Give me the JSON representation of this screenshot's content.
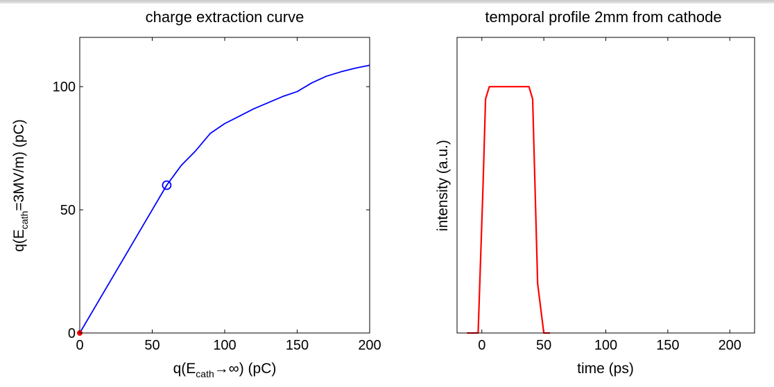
{
  "chart_data": [
    {
      "type": "line",
      "title": "charge extraction curve",
      "xlabel": {
        "pre": "q(E",
        "sub": "cath",
        "post": "→∞) (pC)"
      },
      "ylabel": {
        "pre": "q(E",
        "sub": "cath",
        "post": "=3MV/m) (pC)"
      },
      "xlim": [
        0,
        200
      ],
      "ylim": [
        0,
        120
      ],
      "xticks": [
        "0",
        "50",
        "100",
        "150",
        "200"
      ],
      "yticks": [
        "0",
        "50",
        "100"
      ],
      "series": [
        {
          "color": "#0000ff",
          "x": [
            0,
            10,
            20,
            30,
            40,
            50,
            60,
            65,
            70,
            80,
            90,
            100,
            110,
            120,
            130,
            140,
            150,
            160,
            170,
            180,
            190,
            200
          ],
          "y": [
            0,
            10,
            20,
            30,
            40,
            50,
            60,
            64,
            68,
            74,
            81,
            85,
            88,
            91,
            93.5,
            96,
            98,
            101.5,
            104.2,
            106,
            107.5,
            108.7
          ]
        }
      ],
      "markers": [
        {
          "x": 60,
          "y": 60,
          "style": "open-circle",
          "color": "#0000ff"
        },
        {
          "x": 0,
          "y": 0,
          "style": "filled-dot",
          "color": "#ff0000"
        }
      ]
    },
    {
      "type": "line",
      "title": "temporal profile 2mm from cathode",
      "xlabel": "time (ps)",
      "ylabel": "intensity (a.u.)",
      "xlim": [
        -20,
        220
      ],
      "ylim": [
        0,
        1.2
      ],
      "xticks": [
        "0",
        "50",
        "100",
        "150",
        "200"
      ],
      "yticks": [],
      "series": [
        {
          "color": "#ff0000",
          "x": [
            -12,
            -3,
            1,
            3,
            6,
            15,
            30,
            38,
            41,
            45,
            50,
            55
          ],
          "y": [
            0,
            0,
            0.6,
            0.95,
            1.0,
            1.0,
            1.0,
            1.0,
            0.95,
            0.2,
            0,
            0
          ]
        }
      ]
    }
  ]
}
